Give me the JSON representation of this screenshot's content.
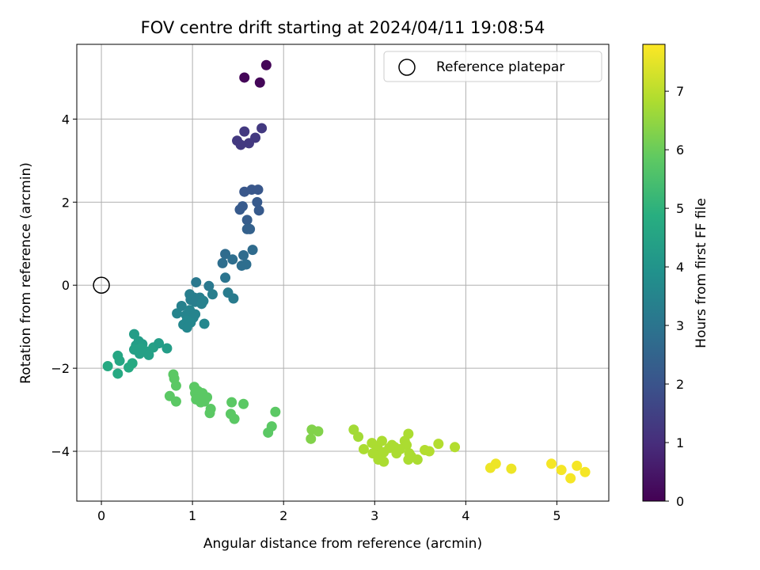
{
  "chart_data": {
    "type": "scatter",
    "title": "FOV centre drift starting at 2024/04/11 19:08:54",
    "xlabel": "Angular distance from reference (arcmin)",
    "ylabel": "Rotation from reference (arcmin)",
    "xlim": [
      -0.27,
      5.57
    ],
    "ylim": [
      -5.2,
      5.8
    ],
    "xticks": [
      0,
      1,
      2,
      3,
      4,
      5
    ],
    "yticks": [
      -4,
      -2,
      0,
      2,
      4
    ],
    "grid": true,
    "legend": {
      "placement": "top-right",
      "entries": [
        "Reference platepar"
      ]
    },
    "reference_point": {
      "x": 0,
      "y": 0
    },
    "colorbar": {
      "label": "Hours from first FF file",
      "colormap": "viridis",
      "range": [
        0,
        7.8
      ],
      "ticks": [
        0,
        1,
        2,
        3,
        4,
        5,
        6,
        7
      ]
    },
    "points": [
      [
        1.81,
        5.3,
        0.1
      ],
      [
        1.57,
        5.0,
        0.1
      ],
      [
        1.74,
        4.88,
        0.1
      ],
      [
        1.76,
        3.78,
        1.3
      ],
      [
        1.57,
        3.7,
        1.3
      ],
      [
        1.69,
        3.55,
        1.3
      ],
      [
        1.49,
        3.48,
        1.3
      ],
      [
        1.62,
        3.42,
        1.3
      ],
      [
        1.53,
        3.38,
        1.3
      ],
      [
        1.57,
        2.25,
        2.1
      ],
      [
        1.65,
        2.3,
        2.1
      ],
      [
        1.72,
        2.3,
        2.1
      ],
      [
        1.71,
        2.0,
        2.2
      ],
      [
        1.55,
        1.9,
        2.2
      ],
      [
        1.52,
        1.82,
        2.2
      ],
      [
        1.73,
        1.8,
        2.2
      ],
      [
        1.6,
        1.57,
        2.3
      ],
      [
        1.6,
        1.35,
        2.4
      ],
      [
        1.63,
        1.35,
        2.4
      ],
      [
        1.66,
        0.85,
        2.7
      ],
      [
        1.36,
        0.75,
        2.7
      ],
      [
        1.56,
        0.72,
        2.7
      ],
      [
        1.44,
        0.62,
        2.8
      ],
      [
        1.33,
        0.53,
        2.8
      ],
      [
        1.59,
        0.5,
        2.8
      ],
      [
        1.54,
        0.47,
        2.8
      ],
      [
        1.36,
        0.18,
        3.0
      ],
      [
        1.04,
        0.07,
        3.1
      ],
      [
        1.18,
        -0.02,
        3.1
      ],
      [
        1.39,
        -0.18,
        3.2
      ],
      [
        1.45,
        -0.32,
        3.2
      ],
      [
        0.97,
        -0.22,
        3.3
      ],
      [
        1.02,
        -0.3,
        3.3
      ],
      [
        1.08,
        -0.3,
        3.3
      ],
      [
        0.98,
        -0.35,
        3.3
      ],
      [
        1.22,
        -0.22,
        3.3
      ],
      [
        1.03,
        -0.4,
        3.3
      ],
      [
        1.12,
        -0.38,
        3.4
      ],
      [
        1.1,
        -0.45,
        3.4
      ],
      [
        0.88,
        -0.5,
        3.4
      ],
      [
        0.97,
        -0.6,
        3.5
      ],
      [
        0.83,
        -0.68,
        3.5
      ],
      [
        1.03,
        -0.7,
        3.5
      ],
      [
        0.93,
        -0.72,
        3.5
      ],
      [
        1.01,
        -0.78,
        3.5
      ],
      [
        0.94,
        -0.85,
        3.6
      ],
      [
        0.98,
        -0.9,
        3.6
      ],
      [
        0.9,
        -0.95,
        3.6
      ],
      [
        0.94,
        -1.02,
        3.6
      ],
      [
        1.13,
        -0.93,
        3.6
      ],
      [
        0.36,
        -1.18,
        4.3
      ],
      [
        0.41,
        -1.35,
        4.3
      ],
      [
        0.38,
        -1.45,
        4.3
      ],
      [
        0.45,
        -1.42,
        4.3
      ],
      [
        0.36,
        -1.55,
        4.4
      ],
      [
        0.43,
        -1.52,
        4.4
      ],
      [
        0.47,
        -1.58,
        4.4
      ],
      [
        0.5,
        -1.6,
        4.4
      ],
      [
        0.42,
        -1.65,
        4.4
      ],
      [
        0.52,
        -1.68,
        4.4
      ],
      [
        0.57,
        -1.5,
        4.4
      ],
      [
        0.63,
        -1.4,
        4.3
      ],
      [
        0.72,
        -1.52,
        4.3
      ],
      [
        0.18,
        -1.7,
        4.6
      ],
      [
        0.2,
        -1.82,
        4.6
      ],
      [
        0.07,
        -1.95,
        4.7
      ],
      [
        0.34,
        -1.88,
        4.7
      ],
      [
        0.3,
        -1.98,
        4.7
      ],
      [
        0.18,
        -2.13,
        4.7
      ],
      [
        0.79,
        -2.15,
        5.8
      ],
      [
        0.8,
        -2.25,
        5.8
      ],
      [
        0.82,
        -2.42,
        5.8
      ],
      [
        0.75,
        -2.67,
        5.8
      ],
      [
        0.82,
        -2.8,
        5.8
      ],
      [
        1.02,
        -2.45,
        5.8
      ],
      [
        1.06,
        -2.55,
        5.8
      ],
      [
        1.03,
        -2.6,
        5.8
      ],
      [
        1.11,
        -2.6,
        5.8
      ],
      [
        1.16,
        -2.7,
        5.8
      ],
      [
        1.04,
        -2.75,
        5.8
      ],
      [
        1.09,
        -2.82,
        5.8
      ],
      [
        1.13,
        -2.8,
        5.8
      ],
      [
        1.2,
        -2.98,
        5.8
      ],
      [
        1.19,
        -3.08,
        5.8
      ],
      [
        1.43,
        -2.82,
        5.8
      ],
      [
        1.56,
        -2.86,
        5.8
      ],
      [
        1.42,
        -3.1,
        5.8
      ],
      [
        1.46,
        -3.22,
        5.8
      ],
      [
        1.91,
        -3.05,
        5.8
      ],
      [
        1.87,
        -3.4,
        5.8
      ],
      [
        1.83,
        -3.55,
        5.8
      ],
      [
        2.31,
        -3.48,
        6.3
      ],
      [
        2.38,
        -3.52,
        6.3
      ],
      [
        2.3,
        -3.7,
        6.3
      ],
      [
        2.77,
        -3.48,
        6.7
      ],
      [
        2.82,
        -3.65,
        6.7
      ],
      [
        2.88,
        -3.95,
        6.8
      ],
      [
        2.97,
        -3.8,
        6.8
      ],
      [
        3.03,
        -3.88,
        6.8
      ],
      [
        3.08,
        -3.75,
        6.8
      ],
      [
        3.02,
        -3.98,
        6.8
      ],
      [
        2.98,
        -4.05,
        6.8
      ],
      [
        3.1,
        -4.02,
        6.8
      ],
      [
        3.16,
        -3.92,
        6.8
      ],
      [
        3.19,
        -3.85,
        6.8
      ],
      [
        3.22,
        -3.9,
        6.8
      ],
      [
        3.24,
        -4.05,
        6.8
      ],
      [
        3.06,
        -4.18,
        6.8
      ],
      [
        3.04,
        -4.2,
        6.8
      ],
      [
        3.1,
        -4.25,
        6.8
      ],
      [
        3.33,
        -3.75,
        6.8
      ],
      [
        3.35,
        -3.85,
        6.8
      ],
      [
        3.37,
        -3.58,
        6.8
      ],
      [
        3.28,
        -3.95,
        6.8
      ],
      [
        3.38,
        -4.05,
        6.8
      ],
      [
        3.4,
        -4.12,
        6.8
      ],
      [
        3.37,
        -4.2,
        6.8
      ],
      [
        3.47,
        -4.2,
        6.8
      ],
      [
        3.55,
        -3.97,
        6.9
      ],
      [
        3.6,
        -4.0,
        6.9
      ],
      [
        3.7,
        -3.82,
        6.9
      ],
      [
        3.88,
        -3.9,
        6.9
      ],
      [
        4.27,
        -4.4,
        7.6
      ],
      [
        4.33,
        -4.3,
        7.6
      ],
      [
        4.5,
        -4.42,
        7.6
      ],
      [
        4.94,
        -4.3,
        7.7
      ],
      [
        5.05,
        -4.45,
        7.7
      ],
      [
        5.15,
        -4.65,
        7.7
      ],
      [
        5.22,
        -4.35,
        7.7
      ],
      [
        5.31,
        -4.5,
        7.7
      ]
    ]
  }
}
